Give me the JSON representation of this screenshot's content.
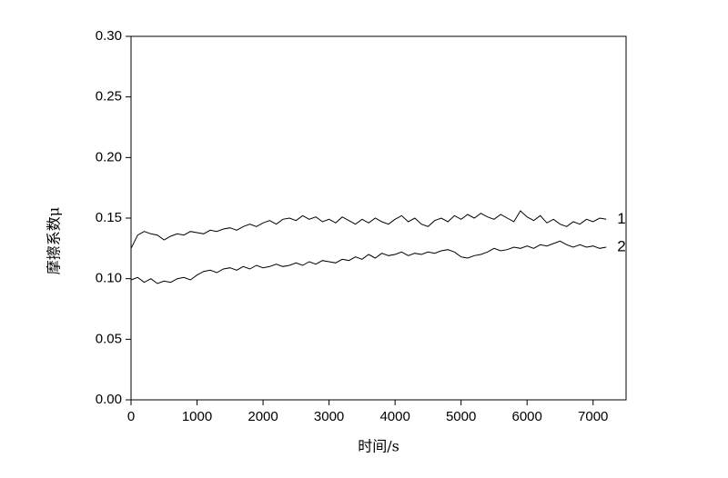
{
  "chart_data": {
    "type": "line",
    "xlabel": "时间/s",
    "ylabel": "摩擦系数μ",
    "xlim": [
      0,
      7500
    ],
    "ylim": [
      0,
      0.3
    ],
    "xticks": [
      0,
      1000,
      2000,
      3000,
      4000,
      5000,
      6000,
      7000
    ],
    "yticks": [
      {
        "value": 0,
        "label": "0.00"
      },
      0.05,
      {
        "value": 0.1,
        "label": "0.10"
      },
      0.15,
      {
        "value": 0.2,
        "label": "0.20"
      },
      0.25,
      {
        "value": 0.3,
        "label": "0.30"
      }
    ],
    "x": [
      0,
      100,
      200,
      300,
      400,
      500,
      600,
      700,
      800,
      900,
      1000,
      1100,
      1200,
      1300,
      1400,
      1500,
      1600,
      1700,
      1800,
      1900,
      2000,
      2100,
      2200,
      2300,
      2400,
      2500,
      2600,
      2700,
      2800,
      2900,
      3000,
      3100,
      3200,
      3300,
      3400,
      3500,
      3600,
      3700,
      3800,
      3900,
      4000,
      4100,
      4200,
      4300,
      4400,
      4500,
      4600,
      4700,
      4800,
      4900,
      5000,
      5100,
      5200,
      5300,
      5400,
      5500,
      5600,
      5700,
      5800,
      5900,
      6000,
      6100,
      6200,
      6300,
      6400,
      6500,
      6600,
      6700,
      6800,
      6900,
      7000,
      7100,
      7200
    ],
    "series": [
      {
        "name": "1",
        "color": "#000000",
        "values": [
          0.125,
          0.136,
          0.139,
          0.137,
          0.136,
          0.132,
          0.135,
          0.137,
          0.136,
          0.139,
          0.138,
          0.137,
          0.14,
          0.139,
          0.141,
          0.142,
          0.14,
          0.143,
          0.145,
          0.143,
          0.146,
          0.148,
          0.145,
          0.149,
          0.15,
          0.148,
          0.152,
          0.149,
          0.151,
          0.147,
          0.149,
          0.146,
          0.151,
          0.148,
          0.145,
          0.149,
          0.146,
          0.15,
          0.147,
          0.145,
          0.149,
          0.152,
          0.147,
          0.15,
          0.145,
          0.143,
          0.148,
          0.15,
          0.147,
          0.152,
          0.149,
          0.153,
          0.15,
          0.154,
          0.151,
          0.149,
          0.153,
          0.15,
          0.147,
          0.156,
          0.151,
          0.148,
          0.152,
          0.146,
          0.149,
          0.145,
          0.143,
          0.147,
          0.145,
          0.149,
          0.147,
          0.15,
          0.149
        ]
      },
      {
        "name": "2",
        "color": "#000000",
        "values": [
          0.099,
          0.101,
          0.097,
          0.1,
          0.096,
          0.098,
          0.097,
          0.1,
          0.101,
          0.099,
          0.103,
          0.106,
          0.107,
          0.105,
          0.108,
          0.109,
          0.107,
          0.11,
          0.108,
          0.111,
          0.109,
          0.11,
          0.112,
          0.11,
          0.111,
          0.113,
          0.111,
          0.114,
          0.112,
          0.115,
          0.114,
          0.113,
          0.116,
          0.115,
          0.118,
          0.116,
          0.12,
          0.117,
          0.121,
          0.119,
          0.12,
          0.122,
          0.119,
          0.121,
          0.12,
          0.122,
          0.121,
          0.123,
          0.124,
          0.122,
          0.118,
          0.117,
          0.119,
          0.12,
          0.122,
          0.125,
          0.123,
          0.124,
          0.126,
          0.125,
          0.127,
          0.125,
          0.128,
          0.127,
          0.129,
          0.131,
          0.128,
          0.126,
          0.128,
          0.126,
          0.127,
          0.125,
          0.126
        ]
      }
    ]
  }
}
